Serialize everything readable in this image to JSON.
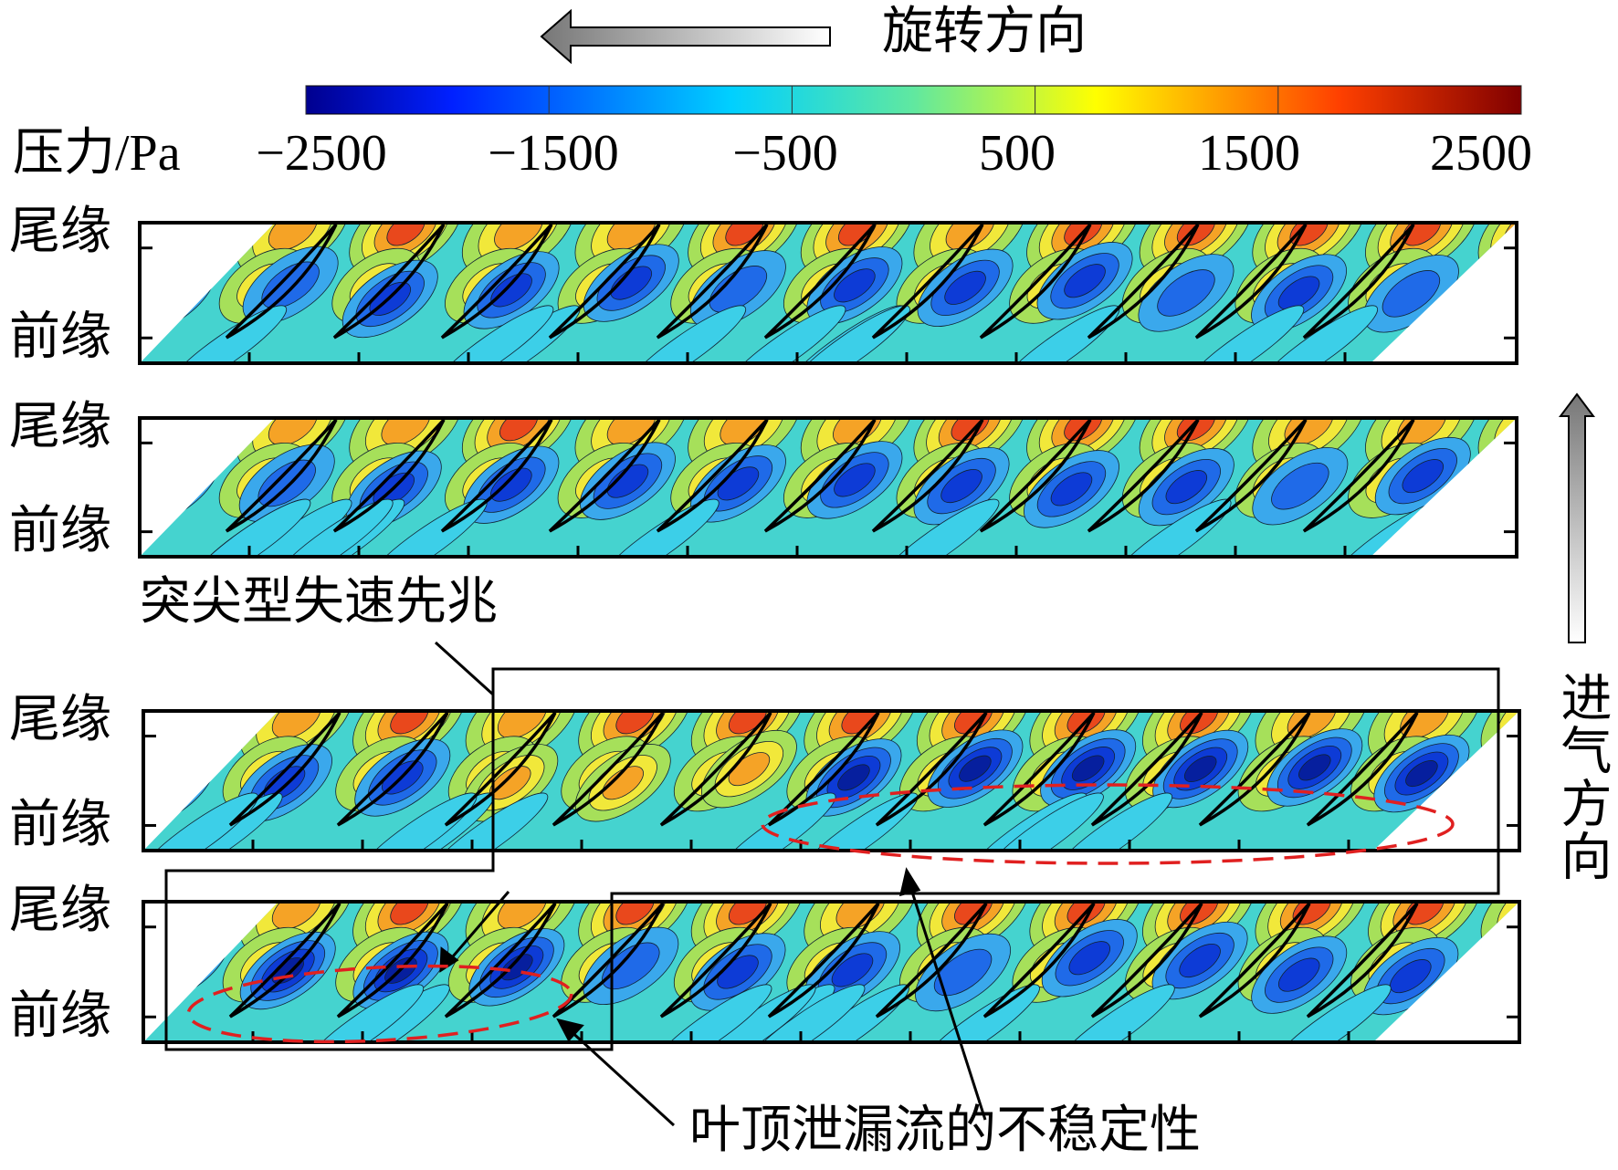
{
  "rotation_label": "旋转方向",
  "colorbar": {
    "label": "压力/Pa",
    "ticks": [
      {
        "value": -2500,
        "label": "−2500"
      },
      {
        "value": -1500,
        "label": "−1500"
      },
      {
        "value": -500,
        "label": "−500"
      },
      500,
      1500,
      2500
    ]
  },
  "panels": [
    {
      "trailing_edge": "尾缘",
      "leading_edge": "前缘"
    },
    {
      "trailing_edge": "尾缘",
      "leading_edge": "前缘"
    },
    {
      "trailing_edge": "尾缘",
      "leading_edge": "前缘"
    },
    {
      "trailing_edge": "尾缘",
      "leading_edge": "前缘"
    }
  ],
  "inlet_label": "进气方向",
  "annotations": {
    "spike": "突尖型失速先兆",
    "tip_leakage": "叶顶泄漏流的不稳定性"
  }
}
